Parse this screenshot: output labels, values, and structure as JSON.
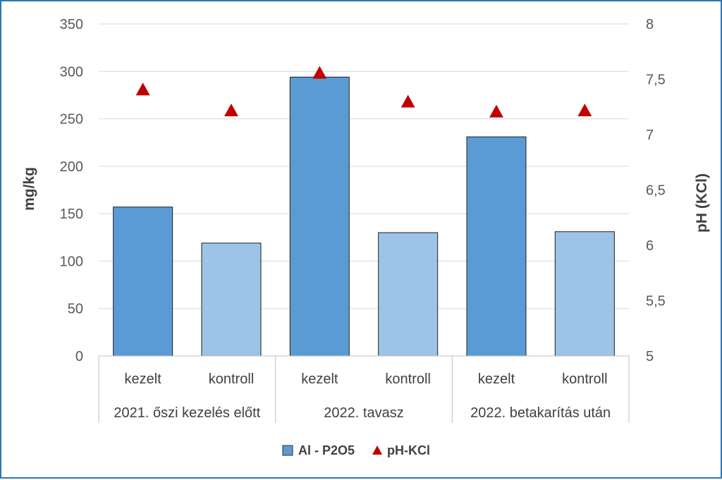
{
  "chart_data": {
    "type": "bar",
    "groups": [
      "2021. őszi kezelés előtt",
      "2022. tavasz",
      "2022. betakarítás után"
    ],
    "subcategories": [
      "kezelt",
      "kontroll",
      "kezelt",
      "kontroll",
      "kezelt",
      "kontroll"
    ],
    "series": [
      {
        "name": "Al - P2O5",
        "type": "bar",
        "axis": "left",
        "values": [
          157,
          119,
          294,
          130,
          231,
          131
        ],
        "colors": [
          "#5b9bd5",
          "#9dc3e6",
          "#5b9bd5",
          "#9dc3e6",
          "#5b9bd5",
          "#9dc3e6"
        ]
      },
      {
        "name": "pH-KCl",
        "type": "scatter",
        "marker": "triangle",
        "axis": "right",
        "values": [
          7.4,
          7.21,
          7.55,
          7.29,
          7.2,
          7.21
        ],
        "color": "#c00000"
      }
    ],
    "ylabel": "mg/kg",
    "y2label": "pH (KCl)",
    "ylim": [
      0,
      350
    ],
    "y2lim": [
      5,
      8
    ],
    "yticks": [
      "0",
      "50",
      "100",
      "150",
      "200",
      "250",
      "300",
      "350"
    ],
    "y2ticks": [
      "5",
      "5,5",
      "6",
      "6,5",
      "7",
      "7,5",
      "8"
    ],
    "grid": true,
    "legend_position": "bottom"
  }
}
